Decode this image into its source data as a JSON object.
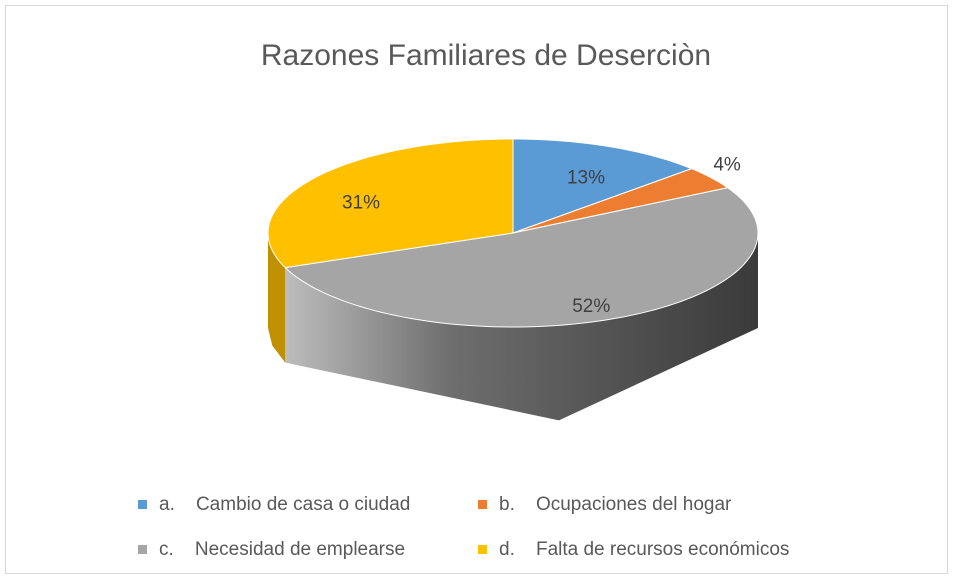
{
  "chart_data": {
    "type": "pie",
    "title": "Razones Familiares de Deserciòn",
    "categories": [
      "a.    Cambio de casa o ciudad",
      "b.    Ocupaciones del hogar",
      "c.    Necesidad de emplearse",
      "d.    Falta de recursos económicos"
    ],
    "values": [
      13,
      4,
      52,
      31
    ],
    "value_labels": [
      "13%",
      "4%",
      "52%",
      "31%"
    ],
    "colors": [
      "#5b9bd5",
      "#ed7d31",
      "#a5a5a5",
      "#ffc000"
    ],
    "legend": "bottom"
  }
}
